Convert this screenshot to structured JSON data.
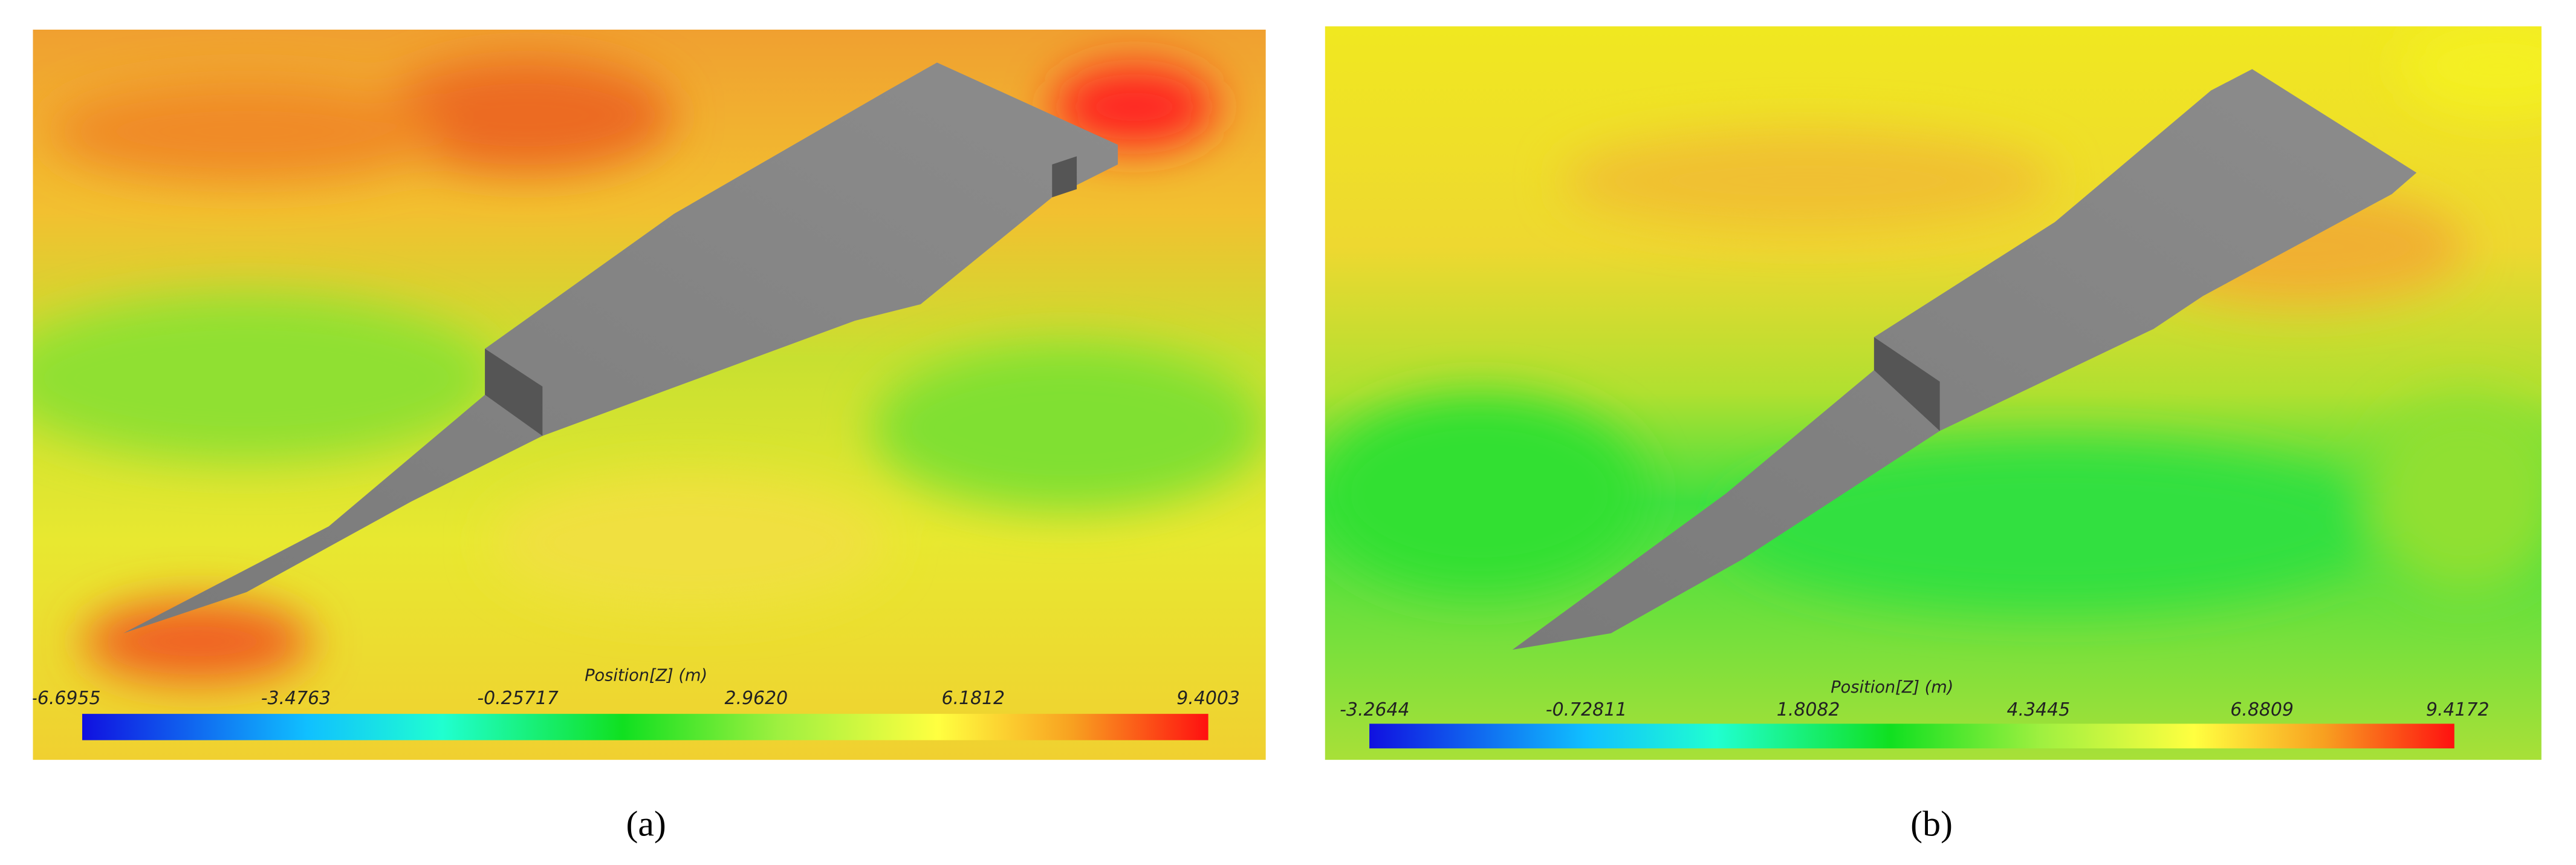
{
  "panels": [
    {
      "label": "(a)",
      "colorbar": {
        "title": "Position[Z] (m)",
        "ticks": [
          "-6.6955",
          "-3.4763",
          "-0.25717",
          "2.9620",
          "6.1812",
          "9.4003"
        ]
      }
    },
    {
      "label": "(b)",
      "colorbar": {
        "title": "Position[Z] (m)",
        "ticks": [
          "-3.2644",
          "-0.72811",
          "1.8082",
          "4.3445",
          "6.8809",
          "9.4172"
        ]
      }
    }
  ]
}
